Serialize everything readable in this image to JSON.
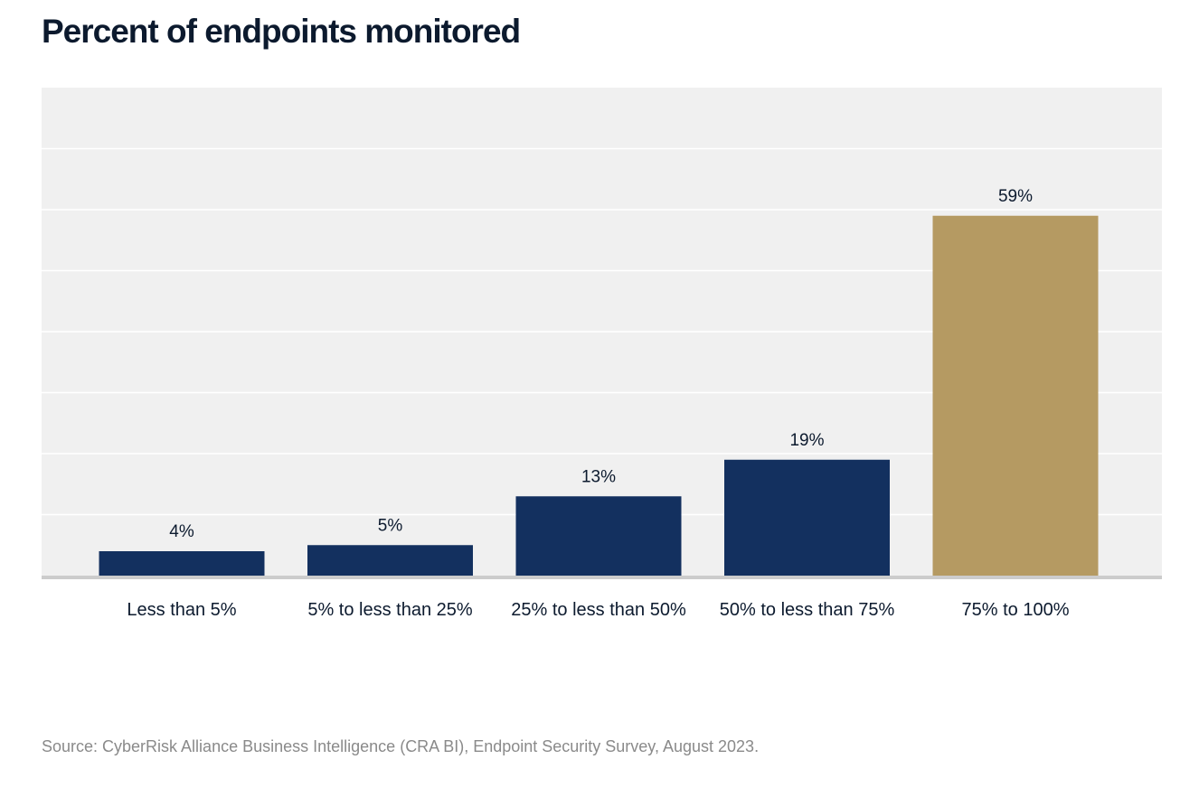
{
  "title": "Percent of endpoints monitored",
  "source": "Source: CyberRisk Alliance Business Intelligence (CRA BI), Endpoint Security Survey, August 2023.",
  "colors": {
    "primary": "#13305f",
    "highlight": "#b59a62",
    "plot_bg": "#f0f0f0",
    "grid": "#ffffff",
    "baseline": "#cccccc",
    "text": "#0c1a2e"
  },
  "chart_data": {
    "type": "bar",
    "title": "Percent of endpoints monitored",
    "categories": [
      "Less than 5%",
      "5% to less than 25%",
      "25% to less than 50%",
      "50% to less than 75%",
      "75% to 100%"
    ],
    "values": [
      4,
      5,
      13,
      19,
      59
    ],
    "data_labels": [
      "4%",
      "5%",
      "13%",
      "19%",
      "59%"
    ],
    "highlight_index": 4,
    "xlabel": "",
    "ylabel": "",
    "ylim": [
      0,
      80
    ],
    "grid": true,
    "grid_step": 10,
    "legend": "none"
  }
}
